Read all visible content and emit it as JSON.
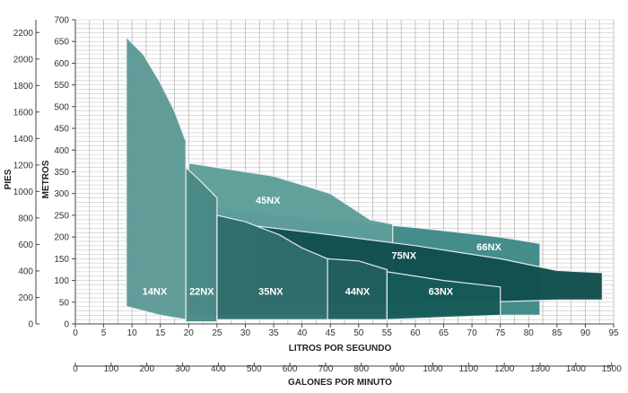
{
  "chart_data": {
    "type": "area",
    "title": "",
    "xlabel": "LITROS POR SEGUNDO",
    "x2label": "GALONES POR MINUTO",
    "ylabel": "METROS",
    "y2label": "PIES",
    "xlim": [
      0,
      95
    ],
    "ylim": [
      0,
      700
    ],
    "x_ticks": [
      0,
      5,
      10,
      15,
      20,
      25,
      30,
      35,
      40,
      45,
      50,
      55,
      60,
      65,
      70,
      75,
      80,
      85,
      90,
      95
    ],
    "y_ticks": [
      0,
      50,
      100,
      150,
      200,
      250,
      300,
      350,
      400,
      450,
      500,
      550,
      600,
      650,
      700
    ],
    "x2_ticks": [
      0,
      100,
      200,
      300,
      400,
      500,
      600,
      700,
      800,
      900,
      1000,
      1100,
      1200,
      1300,
      1400,
      1500
    ],
    "y2_ticks": [
      0,
      200,
      400,
      600,
      800,
      1000,
      1200,
      1400,
      1600,
      1800,
      2000,
      2200
    ],
    "grid": true,
    "series": [
      {
        "name": "66NX",
        "color": "#3f8a87",
        "points": [
          [
            20,
            285
          ],
          [
            25,
            268
          ],
          [
            40,
            245
          ],
          [
            60,
            222
          ],
          [
            75,
            200
          ],
          [
            82,
            185
          ],
          [
            82,
            20
          ],
          [
            20,
            20
          ]
        ]
      },
      {
        "name": "45NX",
        "color": "#5e9e9a",
        "points": [
          [
            20,
            370
          ],
          [
            35,
            340
          ],
          [
            45,
            300
          ],
          [
            52,
            240
          ],
          [
            56,
            230
          ],
          [
            56,
            20
          ],
          [
            20,
            20
          ]
        ]
      },
      {
        "name": "75NX",
        "color": "#124f4f",
        "points": [
          [
            32,
            225
          ],
          [
            45,
            205
          ],
          [
            60,
            180
          ],
          [
            75,
            150
          ],
          [
            85,
            123
          ],
          [
            93,
            118
          ],
          [
            93,
            55
          ],
          [
            85,
            55
          ],
          [
            45,
            40
          ],
          [
            32,
            40
          ]
        ]
      },
      {
        "name": "14NX",
        "color": "#5d9a97",
        "points": [
          [
            9,
            660
          ],
          [
            12,
            620
          ],
          [
            15,
            555
          ],
          [
            17.5,
            490
          ],
          [
            19.5,
            420
          ],
          [
            19.5,
            10
          ],
          [
            15,
            20
          ],
          [
            9,
            40
          ]
        ]
      },
      {
        "name": "22NX",
        "color": "#4a8a86",
        "points": [
          [
            19.5,
            360
          ],
          [
            22,
            330
          ],
          [
            25,
            290
          ],
          [
            25,
            5
          ],
          [
            19.5,
            5
          ]
        ]
      },
      {
        "name": "35NX",
        "color": "#2f6e6c",
        "points": [
          [
            25,
            250
          ],
          [
            30,
            235
          ],
          [
            36,
            205
          ],
          [
            40,
            175
          ],
          [
            44.5,
            150
          ],
          [
            44.5,
            10
          ],
          [
            25,
            10
          ]
        ]
      },
      {
        "name": "44NX",
        "color": "#21605f",
        "points": [
          [
            44.5,
            150
          ],
          [
            50,
            145
          ],
          [
            55,
            125
          ],
          [
            55,
            10
          ],
          [
            44.5,
            10
          ]
        ]
      },
      {
        "name": "63NX",
        "color": "#165b58",
        "points": [
          [
            55,
            120
          ],
          [
            65,
            100
          ],
          [
            75,
            85
          ],
          [
            75,
            20
          ],
          [
            65,
            15
          ],
          [
            55,
            10
          ]
        ]
      }
    ],
    "labels": [
      {
        "text": "14NX",
        "x": 14,
        "y": 75
      },
      {
        "text": "22NX",
        "x": 22.3,
        "y": 75
      },
      {
        "text": "35NX",
        "x": 34.5,
        "y": 75
      },
      {
        "text": "44NX",
        "x": 49.8,
        "y": 75
      },
      {
        "text": "63NX",
        "x": 64.5,
        "y": 75
      },
      {
        "text": "45NX",
        "x": 34,
        "y": 285
      },
      {
        "text": "75NX",
        "x": 58,
        "y": 158
      },
      {
        "text": "66NX",
        "x": 73,
        "y": 178
      }
    ]
  }
}
